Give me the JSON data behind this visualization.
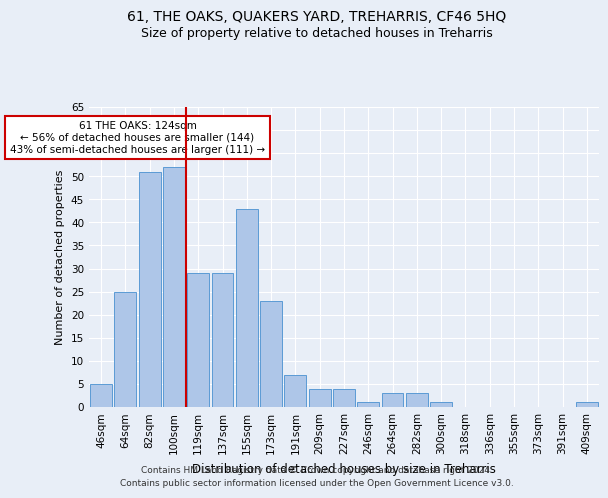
{
  "title1": "61, THE OAKS, QUAKERS YARD, TREHARRIS, CF46 5HQ",
  "title2": "Size of property relative to detached houses in Treharris",
  "xlabel": "Distribution of detached houses by size in Treharris",
  "ylabel": "Number of detached properties",
  "categories": [
    "46sqm",
    "64sqm",
    "82sqm",
    "100sqm",
    "119sqm",
    "137sqm",
    "155sqm",
    "173sqm",
    "191sqm",
    "209sqm",
    "227sqm",
    "246sqm",
    "264sqm",
    "282sqm",
    "300sqm",
    "318sqm",
    "336sqm",
    "355sqm",
    "373sqm",
    "391sqm",
    "409sqm"
  ],
  "values": [
    5,
    25,
    51,
    52,
    29,
    29,
    43,
    23,
    7,
    4,
    4,
    1,
    3,
    3,
    1,
    0,
    0,
    0,
    0,
    0,
    1
  ],
  "bar_color": "#aec6e8",
  "bar_edge_color": "#5b9bd5",
  "vline_color": "#cc0000",
  "annotation_text": "61 THE OAKS: 124sqm\n← 56% of detached houses are smaller (144)\n43% of semi-detached houses are larger (111) →",
  "annotation_box_color": "white",
  "annotation_box_edge": "#cc0000",
  "ylim": [
    0,
    65
  ],
  "yticks": [
    0,
    5,
    10,
    15,
    20,
    25,
    30,
    35,
    40,
    45,
    50,
    55,
    60,
    65
  ],
  "bg_color": "#e8eef7",
  "plot_bg_color": "#e8eef7",
  "footer1": "Contains HM Land Registry data © Crown copyright and database right 2024.",
  "footer2": "Contains public sector information licensed under the Open Government Licence v3.0.",
  "title1_fontsize": 10,
  "title2_fontsize": 9,
  "xlabel_fontsize": 8.5,
  "ylabel_fontsize": 8,
  "tick_fontsize": 7.5,
  "footer_fontsize": 6.5,
  "annot_fontsize": 7.5
}
